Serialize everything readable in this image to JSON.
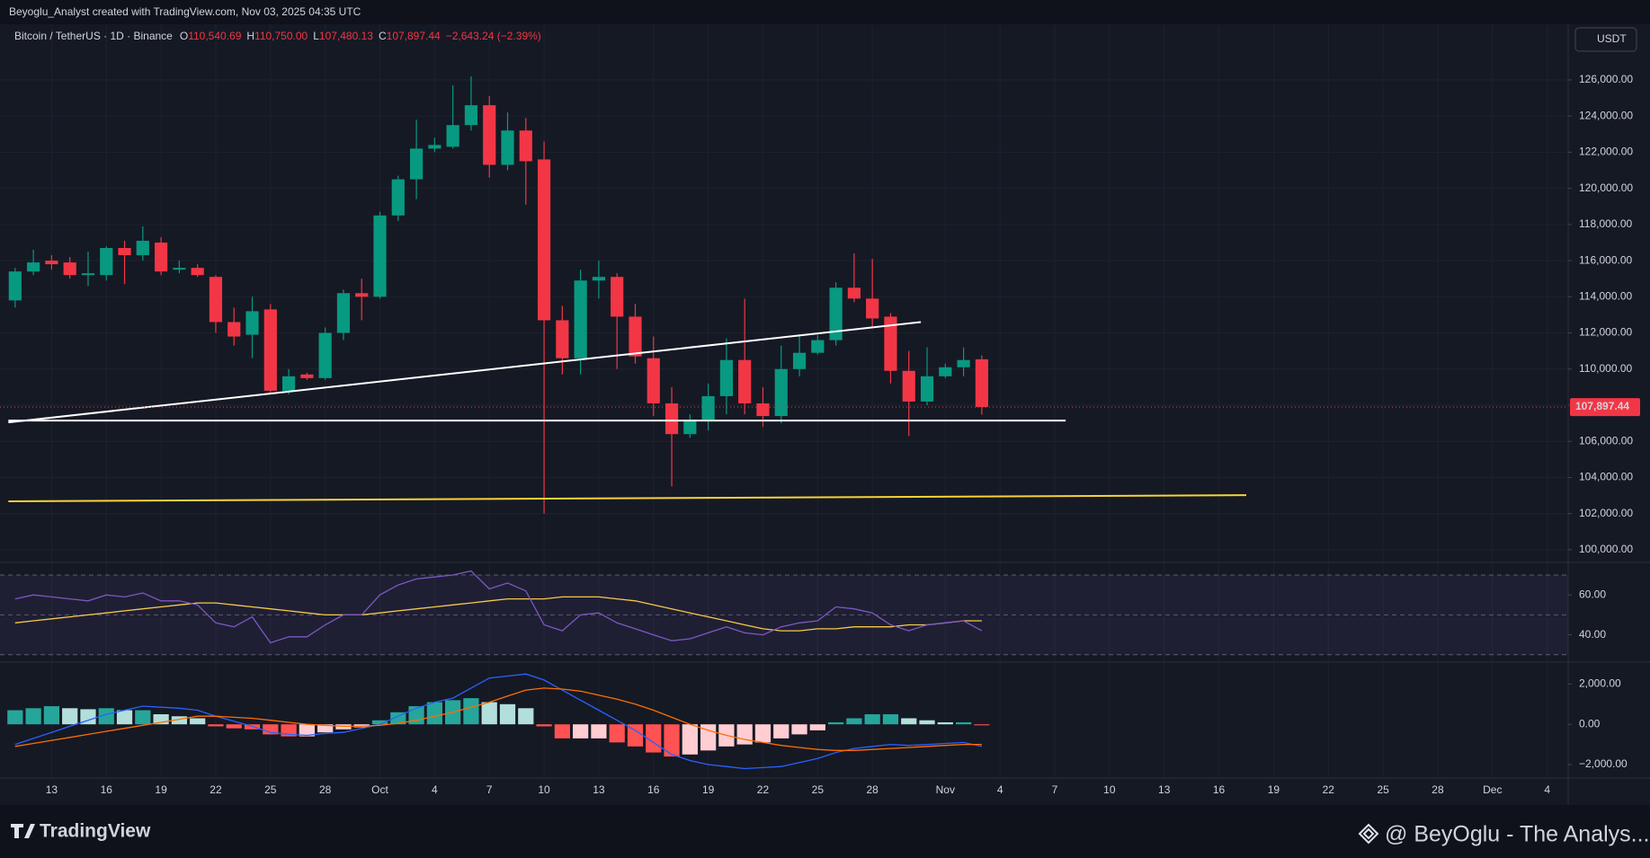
{
  "header": {
    "text": "Beyoglu_Analyst created with TradingView.com, Nov 03, 2025 04:35 UTC",
    "currency": "USDT"
  },
  "footer": {
    "brand": "TradingView",
    "watermark": "@ BeyOglu - The Analys..."
  },
  "chart_data": {
    "type": "candlestick",
    "title": "Bitcoin / TetherUS · 1D · Binance",
    "legend": [
      {
        "key": "O",
        "value": "110,540.69"
      },
      {
        "key": "H",
        "value": "110,750.00"
      },
      {
        "key": "L",
        "value": "107,480.13"
      },
      {
        "key": "C",
        "value": "107,897.44"
      }
    ],
    "change": "−2,643.24 (−2.39%)",
    "up_color": "#089981",
    "down_color": "#f23645",
    "xlim": [
      -0.83,
      85.15
    ],
    "xticks": [
      {
        "value": 2,
        "label": "13"
      },
      {
        "value": 5,
        "label": "16"
      },
      {
        "value": 8,
        "label": "19"
      },
      {
        "value": 11,
        "label": "22"
      },
      {
        "value": 14,
        "label": "25"
      },
      {
        "value": 17,
        "label": "28"
      },
      {
        "value": 20,
        "label": "Oct"
      },
      {
        "value": 23,
        "label": "4"
      },
      {
        "value": 26,
        "label": "7"
      },
      {
        "value": 29,
        "label": "10"
      },
      {
        "value": 32,
        "label": "13"
      },
      {
        "value": 35,
        "label": "16"
      },
      {
        "value": 38,
        "label": "19"
      },
      {
        "value": 41,
        "label": "22"
      },
      {
        "value": 44,
        "label": "25"
      },
      {
        "value": 47,
        "label": "28"
      },
      {
        "value": 51,
        "label": "Nov"
      },
      {
        "value": 54,
        "label": "4"
      },
      {
        "value": 57,
        "label": "7"
      },
      {
        "value": 60,
        "label": "10"
      },
      {
        "value": 63,
        "label": "13"
      },
      {
        "value": 66,
        "label": "16"
      },
      {
        "value": 69,
        "label": "19"
      },
      {
        "value": 72,
        "label": "22"
      },
      {
        "value": 75,
        "label": "25"
      },
      {
        "value": 78,
        "label": "28"
      },
      {
        "value": 81,
        "label": "Dec"
      },
      {
        "value": 84,
        "label": "4"
      }
    ],
    "open": [
      113800,
      115400,
      116000,
      115900,
      115200,
      115200,
      116700,
      116300,
      117000,
      115500,
      115600,
      115100,
      112600,
      111900,
      113300,
      108800,
      109700,
      109500,
      112000,
      114200,
      114000,
      118500,
      120500,
      122200,
      122300,
      123500,
      124600,
      121300,
      123200,
      121600,
      112700,
      110600,
      114900,
      115100,
      112900,
      110600,
      108100,
      106400,
      107200,
      108500,
      110500,
      108100,
      107400,
      110000,
      110900,
      111600,
      114500,
      113900,
      112900,
      109900,
      108200,
      109600,
      110100,
      110540.69
    ],
    "high": [
      115600,
      116600,
      116300,
      116200,
      116500,
      116800,
      117100,
      117900,
      117300,
      116000,
      115800,
      115200,
      113400,
      114000,
      113600,
      110000,
      109800,
      112300,
      114400,
      115000,
      118700,
      120700,
      123800,
      122800,
      125700,
      126200,
      125100,
      124200,
      123900,
      122600,
      113500,
      115500,
      116000,
      115300,
      113600,
      111800,
      109000,
      107500,
      109200,
      111700,
      113900,
      109000,
      111300,
      111900,
      111900,
      114800,
      116400,
      116100,
      113100,
      111000,
      111200,
      110300,
      111200,
      110750
    ],
    "low": [
      113400,
      115200,
      115500,
      115000,
      114600,
      114900,
      114700,
      116000,
      115200,
      115300,
      115100,
      112000,
      111300,
      110600,
      108600,
      108600,
      109400,
      109400,
      111600,
      112700,
      113900,
      118200,
      119400,
      122000,
      122200,
      123200,
      120600,
      121000,
      119100,
      102000,
      109700,
      109700,
      113900,
      110000,
      110300,
      107400,
      103500,
      106200,
      106600,
      107500,
      107500,
      106800,
      107000,
      109600,
      110800,
      111300,
      113700,
      112300,
      109200,
      106300,
      108000,
      109500,
      109600,
      107480.13
    ],
    "close": [
      115400,
      115900,
      115800,
      115200,
      115300,
      116700,
      116300,
      117100,
      115400,
      115600,
      115200,
      112600,
      111800,
      113200,
      108800,
      109600,
      109500,
      112000,
      114200,
      114000,
      118500,
      120500,
      122200,
      122400,
      123500,
      124600,
      121300,
      123200,
      121500,
      112700,
      110600,
      114900,
      115100,
      112900,
      110700,
      108100,
      106400,
      107200,
      108500,
      110500,
      108100,
      107400,
      110000,
      110900,
      111600,
      114500,
      113900,
      112800,
      109900,
      108200,
      109600,
      110100,
      110500,
      107897.44
    ],
    "ylim": [
      99300,
      129080
    ],
    "yticks": [
      {
        "value": 100000,
        "label": "100,000.00"
      },
      {
        "value": 102000,
        "label": "102,000.00"
      },
      {
        "value": 104000,
        "label": "104,000.00"
      },
      {
        "value": 106000,
        "label": "106,000.00"
      },
      {
        "value": 108000,
        "label": "108,000.00"
      },
      {
        "value": 110000,
        "label": "110,000.00"
      },
      {
        "value": 112000,
        "label": "112,000.00"
      },
      {
        "value": 114000,
        "label": "114,000.00"
      },
      {
        "value": 116000,
        "label": "116,000.00"
      },
      {
        "value": 118000,
        "label": "118,000.00"
      },
      {
        "value": 120000,
        "label": "120,000.00"
      },
      {
        "value": 122000,
        "label": "122,000.00"
      },
      {
        "value": 124000,
        "label": "124,000.00"
      },
      {
        "value": 126000,
        "label": "126,000.00"
      }
    ],
    "grid": true,
    "last_price": {
      "value": 107897.44,
      "label": "107,897.44"
    },
    "drawings": [
      {
        "color": "#ffffff",
        "points": [
          [
            -0.37,
            107050
          ],
          [
            49.66,
            112600
          ]
        ]
      },
      {
        "color": "#ffffff",
        "points": [
          [
            -0.37,
            107150
          ],
          [
            57.6,
            107150
          ]
        ]
      },
      {
        "color": "#f7d33a",
        "points": [
          [
            -0.37,
            102680
          ],
          [
            67.5,
            103020
          ]
        ]
      }
    ],
    "rsi": {
      "ylim": [
        26.3,
        76.3
      ],
      "yticks": [
        {
          "value": 60,
          "label": "60.00"
        },
        {
          "value": 40,
          "label": "40.00"
        }
      ],
      "bands": [
        70,
        50,
        30
      ],
      "band_color": "#7e57c2",
      "series": [
        {
          "color": "#7e57c2",
          "values": [
            58,
            60,
            59,
            58,
            57,
            60,
            59,
            61,
            57,
            57,
            55,
            46,
            44,
            49,
            36,
            39,
            39,
            45,
            50,
            50,
            60,
            65,
            68,
            69,
            70,
            72,
            63,
            66,
            62,
            45,
            42,
            50,
            51,
            46,
            43,
            40,
            37,
            38,
            41,
            44,
            41,
            40,
            44,
            46,
            47,
            54,
            53,
            51,
            45,
            42,
            45,
            46,
            47,
            42
          ]
        },
        {
          "color": "#f7c948",
          "values": [
            46,
            47,
            48,
            49,
            50,
            51,
            52,
            53,
            54,
            55,
            56,
            56,
            55,
            54,
            53,
            52,
            51,
            50,
            50,
            50,
            51,
            52,
            53,
            54,
            55,
            56,
            57,
            58,
            58,
            58,
            59,
            59,
            59,
            58,
            57,
            55,
            53,
            51,
            49,
            47,
            45,
            43,
            42,
            42,
            43,
            43,
            44,
            44,
            44,
            45,
            45,
            46,
            47,
            47
          ]
        }
      ]
    },
    "macd": {
      "ylim": [
        -2670,
        3090
      ],
      "yticks": [
        {
          "value": 2000,
          "label": "2,000.00"
        },
        {
          "value": 0,
          "label": "0.00"
        },
        {
          "value": -2000,
          "label": "−2,000.00"
        }
      ],
      "histogram": [
        700,
        800,
        900,
        800,
        750,
        800,
        700,
        700,
        500,
        400,
        300,
        -100,
        -200,
        -250,
        -500,
        -600,
        -600,
        -400,
        -250,
        -150,
        200,
        600,
        900,
        1100,
        1200,
        1300,
        1100,
        1000,
        800,
        -100,
        -700,
        -700,
        -700,
        -900,
        -1100,
        -1400,
        -1600,
        -1500,
        -1300,
        -1100,
        -1000,
        -900,
        -700,
        -500,
        -300,
        100,
        300,
        500,
        500,
        300,
        200,
        100,
        100,
        -50
      ],
      "histogram_colors": [
        "#26a69a",
        "#b2dfdb",
        "#ff5252",
        "#ffcdd2"
      ],
      "series": [
        {
          "color": "#2962ff",
          "values": [
            -1000,
            -700,
            -400,
            -100,
            200,
            500,
            700,
            900,
            850,
            800,
            700,
            400,
            150,
            -100,
            -400,
            -500,
            -550,
            -450,
            -400,
            -200,
            0,
            400,
            800,
            1100,
            1300,
            1800,
            2300,
            2400,
            2500,
            2200,
            1700,
            1200,
            700,
            200,
            -300,
            -900,
            -1500,
            -1800,
            -2000,
            -2100,
            -2200,
            -2150,
            -2100,
            -1900,
            -1700,
            -1400,
            -1200,
            -1100,
            -1000,
            -1050,
            -1000,
            -950,
            -900,
            -1100
          ]
        },
        {
          "color": "#ff6d00",
          "values": [
            -1100,
            -950,
            -800,
            -650,
            -500,
            -350,
            -200,
            -50,
            100,
            250,
            400,
            400,
            350,
            300,
            200,
            100,
            0,
            -50,
            -100,
            -100,
            -50,
            50,
            200,
            400,
            600,
            850,
            1100,
            1400,
            1700,
            1800,
            1750,
            1650,
            1450,
            1250,
            1000,
            700,
            350,
            0,
            -300,
            -550,
            -750,
            -900,
            -1050,
            -1150,
            -1250,
            -1300,
            -1300,
            -1250,
            -1200,
            -1150,
            -1100,
            -1050,
            -1000,
            -1000
          ]
        }
      ]
    }
  }
}
